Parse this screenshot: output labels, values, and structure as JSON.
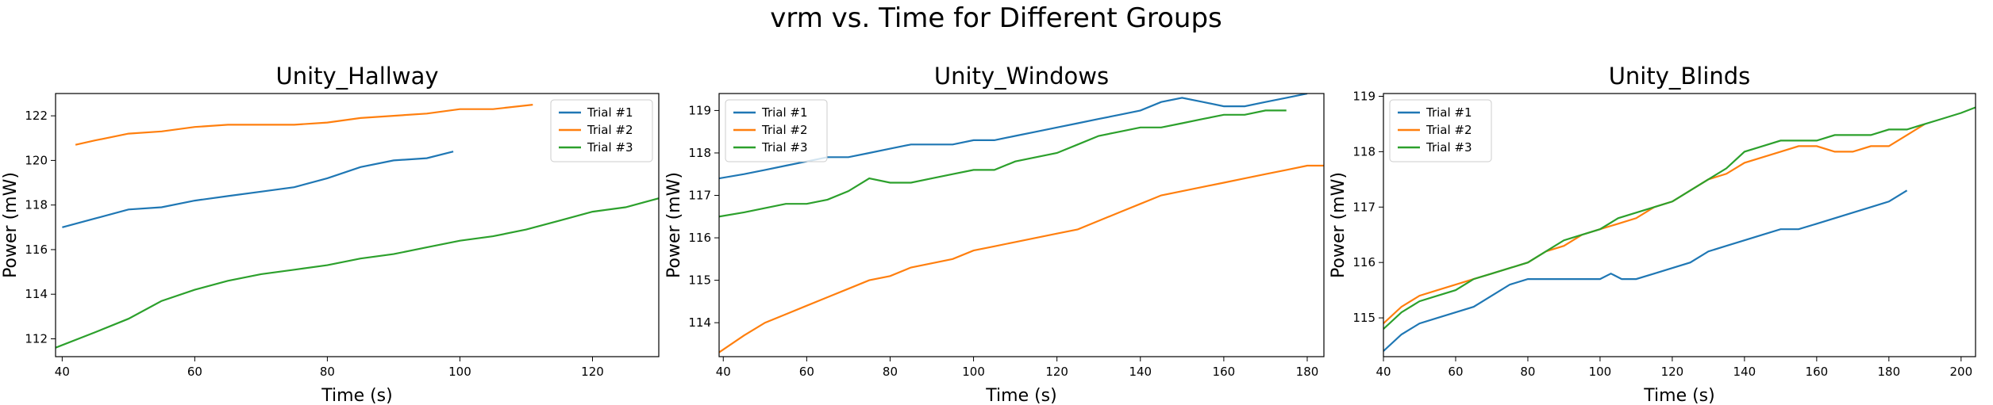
{
  "figure": {
    "suptitle": "vrm vs. Time for Different Groups"
  },
  "chart_data": [
    {
      "type": "line",
      "title": "Unity_Hallway",
      "xlabel": "Time (s)",
      "ylabel": "Power (mW)",
      "xlim": [
        39,
        130
      ],
      "ylim": [
        111.2,
        123.0
      ],
      "xticks": [
        40,
        60,
        80,
        100,
        120
      ],
      "yticks": [
        112,
        114,
        116,
        118,
        120,
        122
      ],
      "legend": "top-right",
      "series": [
        {
          "name": "Trial #1",
          "color": "#1f77b4",
          "points": [
            [
              40,
              117.0
            ],
            [
              45,
              117.4
            ],
            [
              50,
              117.8
            ],
            [
              55,
              117.9
            ],
            [
              60,
              118.2
            ],
            [
              65,
              118.4
            ],
            [
              70,
              118.6
            ],
            [
              75,
              118.8
            ],
            [
              80,
              119.2
            ],
            [
              85,
              119.7
            ],
            [
              90,
              120.0
            ],
            [
              95,
              120.1
            ],
            [
              99,
              120.4
            ]
          ]
        },
        {
          "name": "Trial #2",
          "color": "#ff7f0e",
          "points": [
            [
              42,
              120.7
            ],
            [
              45,
              120.9
            ],
            [
              50,
              121.2
            ],
            [
              55,
              121.3
            ],
            [
              60,
              121.5
            ],
            [
              65,
              121.6
            ],
            [
              70,
              121.6
            ],
            [
              75,
              121.6
            ],
            [
              80,
              121.7
            ],
            [
              85,
              121.9
            ],
            [
              90,
              122.0
            ],
            [
              95,
              122.1
            ],
            [
              100,
              122.3
            ],
            [
              105,
              122.3
            ],
            [
              111,
              122.5
            ]
          ]
        },
        {
          "name": "Trial #3",
          "color": "#2ca02c",
          "points": [
            [
              39,
              111.6
            ],
            [
              45,
              112.3
            ],
            [
              50,
              112.9
            ],
            [
              55,
              113.7
            ],
            [
              60,
              114.2
            ],
            [
              65,
              114.6
            ],
            [
              70,
              114.9
            ],
            [
              75,
              115.1
            ],
            [
              80,
              115.3
            ],
            [
              85,
              115.6
            ],
            [
              90,
              115.8
            ],
            [
              95,
              116.1
            ],
            [
              100,
              116.4
            ],
            [
              105,
              116.6
            ],
            [
              110,
              116.9
            ],
            [
              115,
              117.3
            ],
            [
              120,
              117.7
            ],
            [
              125,
              117.9
            ],
            [
              130,
              118.3
            ]
          ]
        }
      ]
    },
    {
      "type": "line",
      "title": "Unity_Windows",
      "xlabel": "Time (s)",
      "ylabel": "Power (mW)",
      "xlim": [
        39,
        184
      ],
      "ylim": [
        113.2,
        119.4
      ],
      "xticks": [
        40,
        60,
        80,
        100,
        120,
        140,
        160,
        180
      ],
      "yticks": [
        114,
        115,
        116,
        117,
        118,
        119
      ],
      "legend": "top-left",
      "series": [
        {
          "name": "Trial #1",
          "color": "#1f77b4",
          "points": [
            [
              39,
              117.4
            ],
            [
              45,
              117.5
            ],
            [
              50,
              117.6
            ],
            [
              55,
              117.7
            ],
            [
              60,
              117.8
            ],
            [
              65,
              117.9
            ],
            [
              70,
              117.9
            ],
            [
              75,
              118.0
            ],
            [
              80,
              118.1
            ],
            [
              85,
              118.2
            ],
            [
              90,
              118.2
            ],
            [
              95,
              118.2
            ],
            [
              100,
              118.3
            ],
            [
              105,
              118.3
            ],
            [
              110,
              118.4
            ],
            [
              115,
              118.5
            ],
            [
              120,
              118.6
            ],
            [
              125,
              118.7
            ],
            [
              130,
              118.8
            ],
            [
              135,
              118.9
            ],
            [
              140,
              119.0
            ],
            [
              145,
              119.2
            ],
            [
              150,
              119.3
            ],
            [
              155,
              119.2
            ],
            [
              160,
              119.1
            ],
            [
              165,
              119.1
            ],
            [
              170,
              119.2
            ],
            [
              175,
              119.3
            ],
            [
              180,
              119.4
            ]
          ]
        },
        {
          "name": "Trial #2",
          "color": "#ff7f0e",
          "points": [
            [
              39,
              113.3
            ],
            [
              45,
              113.7
            ],
            [
              50,
              114.0
            ],
            [
              55,
              114.2
            ],
            [
              60,
              114.4
            ],
            [
              65,
              114.6
            ],
            [
              70,
              114.8
            ],
            [
              75,
              115.0
            ],
            [
              80,
              115.1
            ],
            [
              85,
              115.3
            ],
            [
              90,
              115.4
            ],
            [
              95,
              115.5
            ],
            [
              100,
              115.7
            ],
            [
              105,
              115.8
            ],
            [
              110,
              115.9
            ],
            [
              115,
              116.0
            ],
            [
              120,
              116.1
            ],
            [
              125,
              116.2
            ],
            [
              130,
              116.4
            ],
            [
              135,
              116.6
            ],
            [
              140,
              116.8
            ],
            [
              145,
              117.0
            ],
            [
              150,
              117.1
            ],
            [
              155,
              117.2
            ],
            [
              160,
              117.3
            ],
            [
              165,
              117.4
            ],
            [
              170,
              117.5
            ],
            [
              175,
              117.6
            ],
            [
              180,
              117.7
            ],
            [
              184,
              117.7
            ]
          ]
        },
        {
          "name": "Trial #3",
          "color": "#2ca02c",
          "points": [
            [
              39,
              116.5
            ],
            [
              45,
              116.6
            ],
            [
              50,
              116.7
            ],
            [
              55,
              116.8
            ],
            [
              60,
              116.8
            ],
            [
              65,
              116.9
            ],
            [
              70,
              117.1
            ],
            [
              75,
              117.4
            ],
            [
              80,
              117.3
            ],
            [
              85,
              117.3
            ],
            [
              90,
              117.4
            ],
            [
              95,
              117.5
            ],
            [
              100,
              117.6
            ],
            [
              105,
              117.6
            ],
            [
              110,
              117.8
            ],
            [
              115,
              117.9
            ],
            [
              120,
              118.0
            ],
            [
              125,
              118.2
            ],
            [
              130,
              118.4
            ],
            [
              135,
              118.5
            ],
            [
              140,
              118.6
            ],
            [
              145,
              118.6
            ],
            [
              150,
              118.7
            ],
            [
              155,
              118.8
            ],
            [
              160,
              118.9
            ],
            [
              165,
              118.9
            ],
            [
              170,
              119.0
            ],
            [
              175,
              119.0
            ]
          ]
        }
      ]
    },
    {
      "type": "line",
      "title": "Unity_Blinds",
      "xlabel": "Time (s)",
      "ylabel": "Power (mW)",
      "xlim": [
        40,
        204
      ],
      "ylim": [
        114.3,
        119.05
      ],
      "xticks": [
        40,
        60,
        80,
        100,
        120,
        140,
        160,
        180,
        200
      ],
      "yticks": [
        115,
        116,
        117,
        118,
        119
      ],
      "legend": "top-left",
      "series": [
        {
          "name": "Trial #1",
          "color": "#1f77b4",
          "points": [
            [
              40,
              114.4
            ],
            [
              45,
              114.7
            ],
            [
              50,
              114.9
            ],
            [
              55,
              115.0
            ],
            [
              60,
              115.1
            ],
            [
              65,
              115.2
            ],
            [
              70,
              115.4
            ],
            [
              75,
              115.6
            ],
            [
              80,
              115.7
            ],
            [
              85,
              115.7
            ],
            [
              90,
              115.7
            ],
            [
              95,
              115.7
            ],
            [
              100,
              115.7
            ],
            [
              103,
              115.8
            ],
            [
              106,
              115.7
            ],
            [
              110,
              115.7
            ],
            [
              115,
              115.8
            ],
            [
              120,
              115.9
            ],
            [
              125,
              116.0
            ],
            [
              130,
              116.2
            ],
            [
              135,
              116.3
            ],
            [
              140,
              116.4
            ],
            [
              145,
              116.5
            ],
            [
              150,
              116.6
            ],
            [
              155,
              116.6
            ],
            [
              160,
              116.7
            ],
            [
              165,
              116.8
            ],
            [
              170,
              116.9
            ],
            [
              175,
              117.0
            ],
            [
              180,
              117.1
            ],
            [
              185,
              117.3
            ]
          ]
        },
        {
          "name": "Trial #2",
          "color": "#ff7f0e",
          "points": [
            [
              40,
              114.9
            ],
            [
              45,
              115.2
            ],
            [
              50,
              115.4
            ],
            [
              55,
              115.5
            ],
            [
              60,
              115.6
            ],
            [
              65,
              115.7
            ],
            [
              70,
              115.8
            ],
            [
              75,
              115.9
            ],
            [
              80,
              116.0
            ],
            [
              85,
              116.2
            ],
            [
              90,
              116.3
            ],
            [
              95,
              116.5
            ],
            [
              100,
              116.6
            ],
            [
              105,
              116.7
            ],
            [
              110,
              116.8
            ],
            [
              115,
              117.0
            ],
            [
              120,
              117.1
            ],
            [
              125,
              117.3
            ],
            [
              130,
              117.5
            ],
            [
              135,
              117.6
            ],
            [
              140,
              117.8
            ],
            [
              145,
              117.9
            ],
            [
              150,
              118.0
            ],
            [
              155,
              118.1
            ],
            [
              160,
              118.1
            ],
            [
              165,
              118.0
            ],
            [
              170,
              118.0
            ],
            [
              175,
              118.1
            ],
            [
              180,
              118.1
            ],
            [
              185,
              118.3
            ],
            [
              190,
              118.5
            ]
          ]
        },
        {
          "name": "Trial #3",
          "color": "#2ca02c",
          "points": [
            [
              40,
              114.8
            ],
            [
              45,
              115.1
            ],
            [
              50,
              115.3
            ],
            [
              55,
              115.4
            ],
            [
              60,
              115.5
            ],
            [
              65,
              115.7
            ],
            [
              70,
              115.8
            ],
            [
              75,
              115.9
            ],
            [
              80,
              116.0
            ],
            [
              85,
              116.2
            ],
            [
              90,
              116.4
            ],
            [
              95,
              116.5
            ],
            [
              100,
              116.6
            ],
            [
              105,
              116.8
            ],
            [
              110,
              116.9
            ],
            [
              115,
              117.0
            ],
            [
              120,
              117.1
            ],
            [
              125,
              117.3
            ],
            [
              130,
              117.5
            ],
            [
              135,
              117.7
            ],
            [
              140,
              118.0
            ],
            [
              145,
              118.1
            ],
            [
              150,
              118.2
            ],
            [
              155,
              118.2
            ],
            [
              160,
              118.2
            ],
            [
              165,
              118.3
            ],
            [
              170,
              118.3
            ],
            [
              175,
              118.3
            ],
            [
              180,
              118.4
            ],
            [
              185,
              118.4
            ],
            [
              190,
              118.5
            ],
            [
              195,
              118.6
            ],
            [
              200,
              118.7
            ],
            [
              204,
              118.8
            ]
          ]
        }
      ]
    }
  ]
}
